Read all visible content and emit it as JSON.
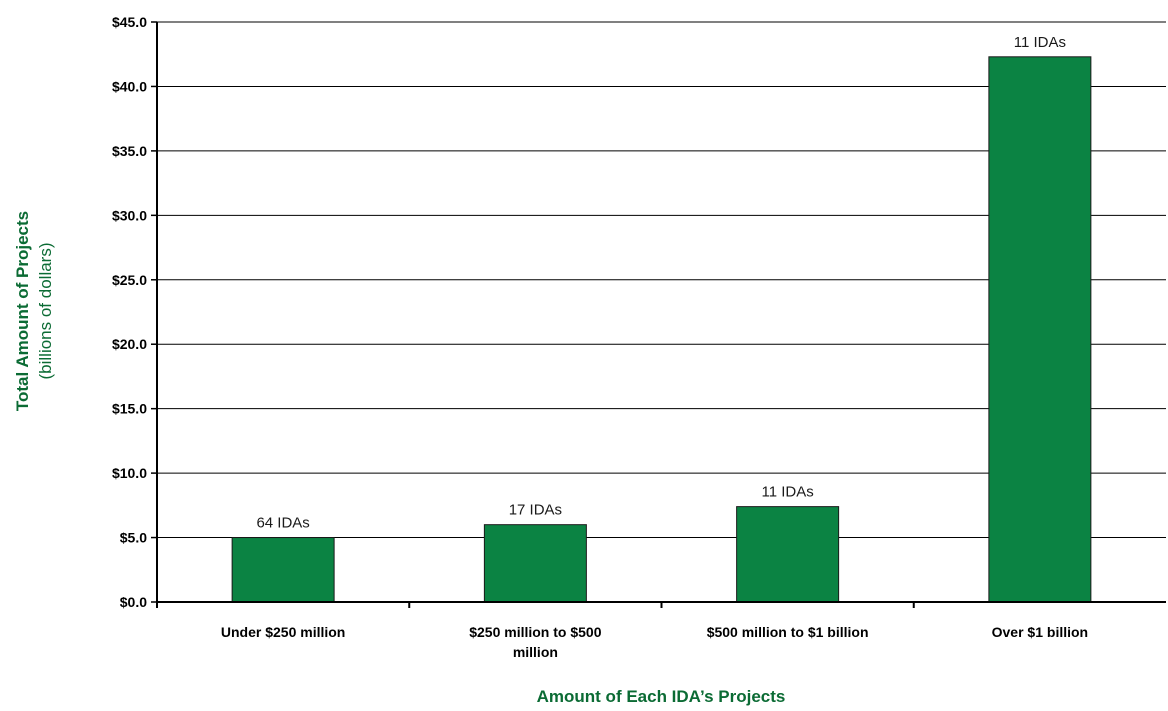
{
  "chart_data": {
    "type": "bar",
    "categories": [
      "Under $250 million",
      "$250 million to $500 million",
      "$500 million to $1 billion",
      "Over $1 billion"
    ],
    "values": [
      5.0,
      6.0,
      7.4,
      42.3
    ],
    "data_labels": [
      "64 IDAs",
      "17 IDAs",
      "11 IDAs",
      "11 IDAs"
    ],
    "title": "",
    "xlabel": "Amount of Each IDA’s Projects",
    "ylabel": "Total Amount of Projects",
    "ylabel_sub": "(billions of dollars)",
    "ylim": [
      0,
      45
    ],
    "yticks": [
      0,
      5,
      10,
      15,
      20,
      25,
      30,
      35,
      40,
      45
    ],
    "ytick_labels": [
      "$0.0",
      "$5.0",
      "$10.0",
      "$15.0",
      "$20.0",
      "$25.0",
      "$30.0",
      "$35.0",
      "$40.0",
      "$45.0"
    ],
    "grid": true,
    "legend": "none",
    "colors": {
      "bar": "#0b8343",
      "bar_edge": "#1a1a1a",
      "axis_title": "#0b6b34",
      "grid": "#000000"
    }
  }
}
